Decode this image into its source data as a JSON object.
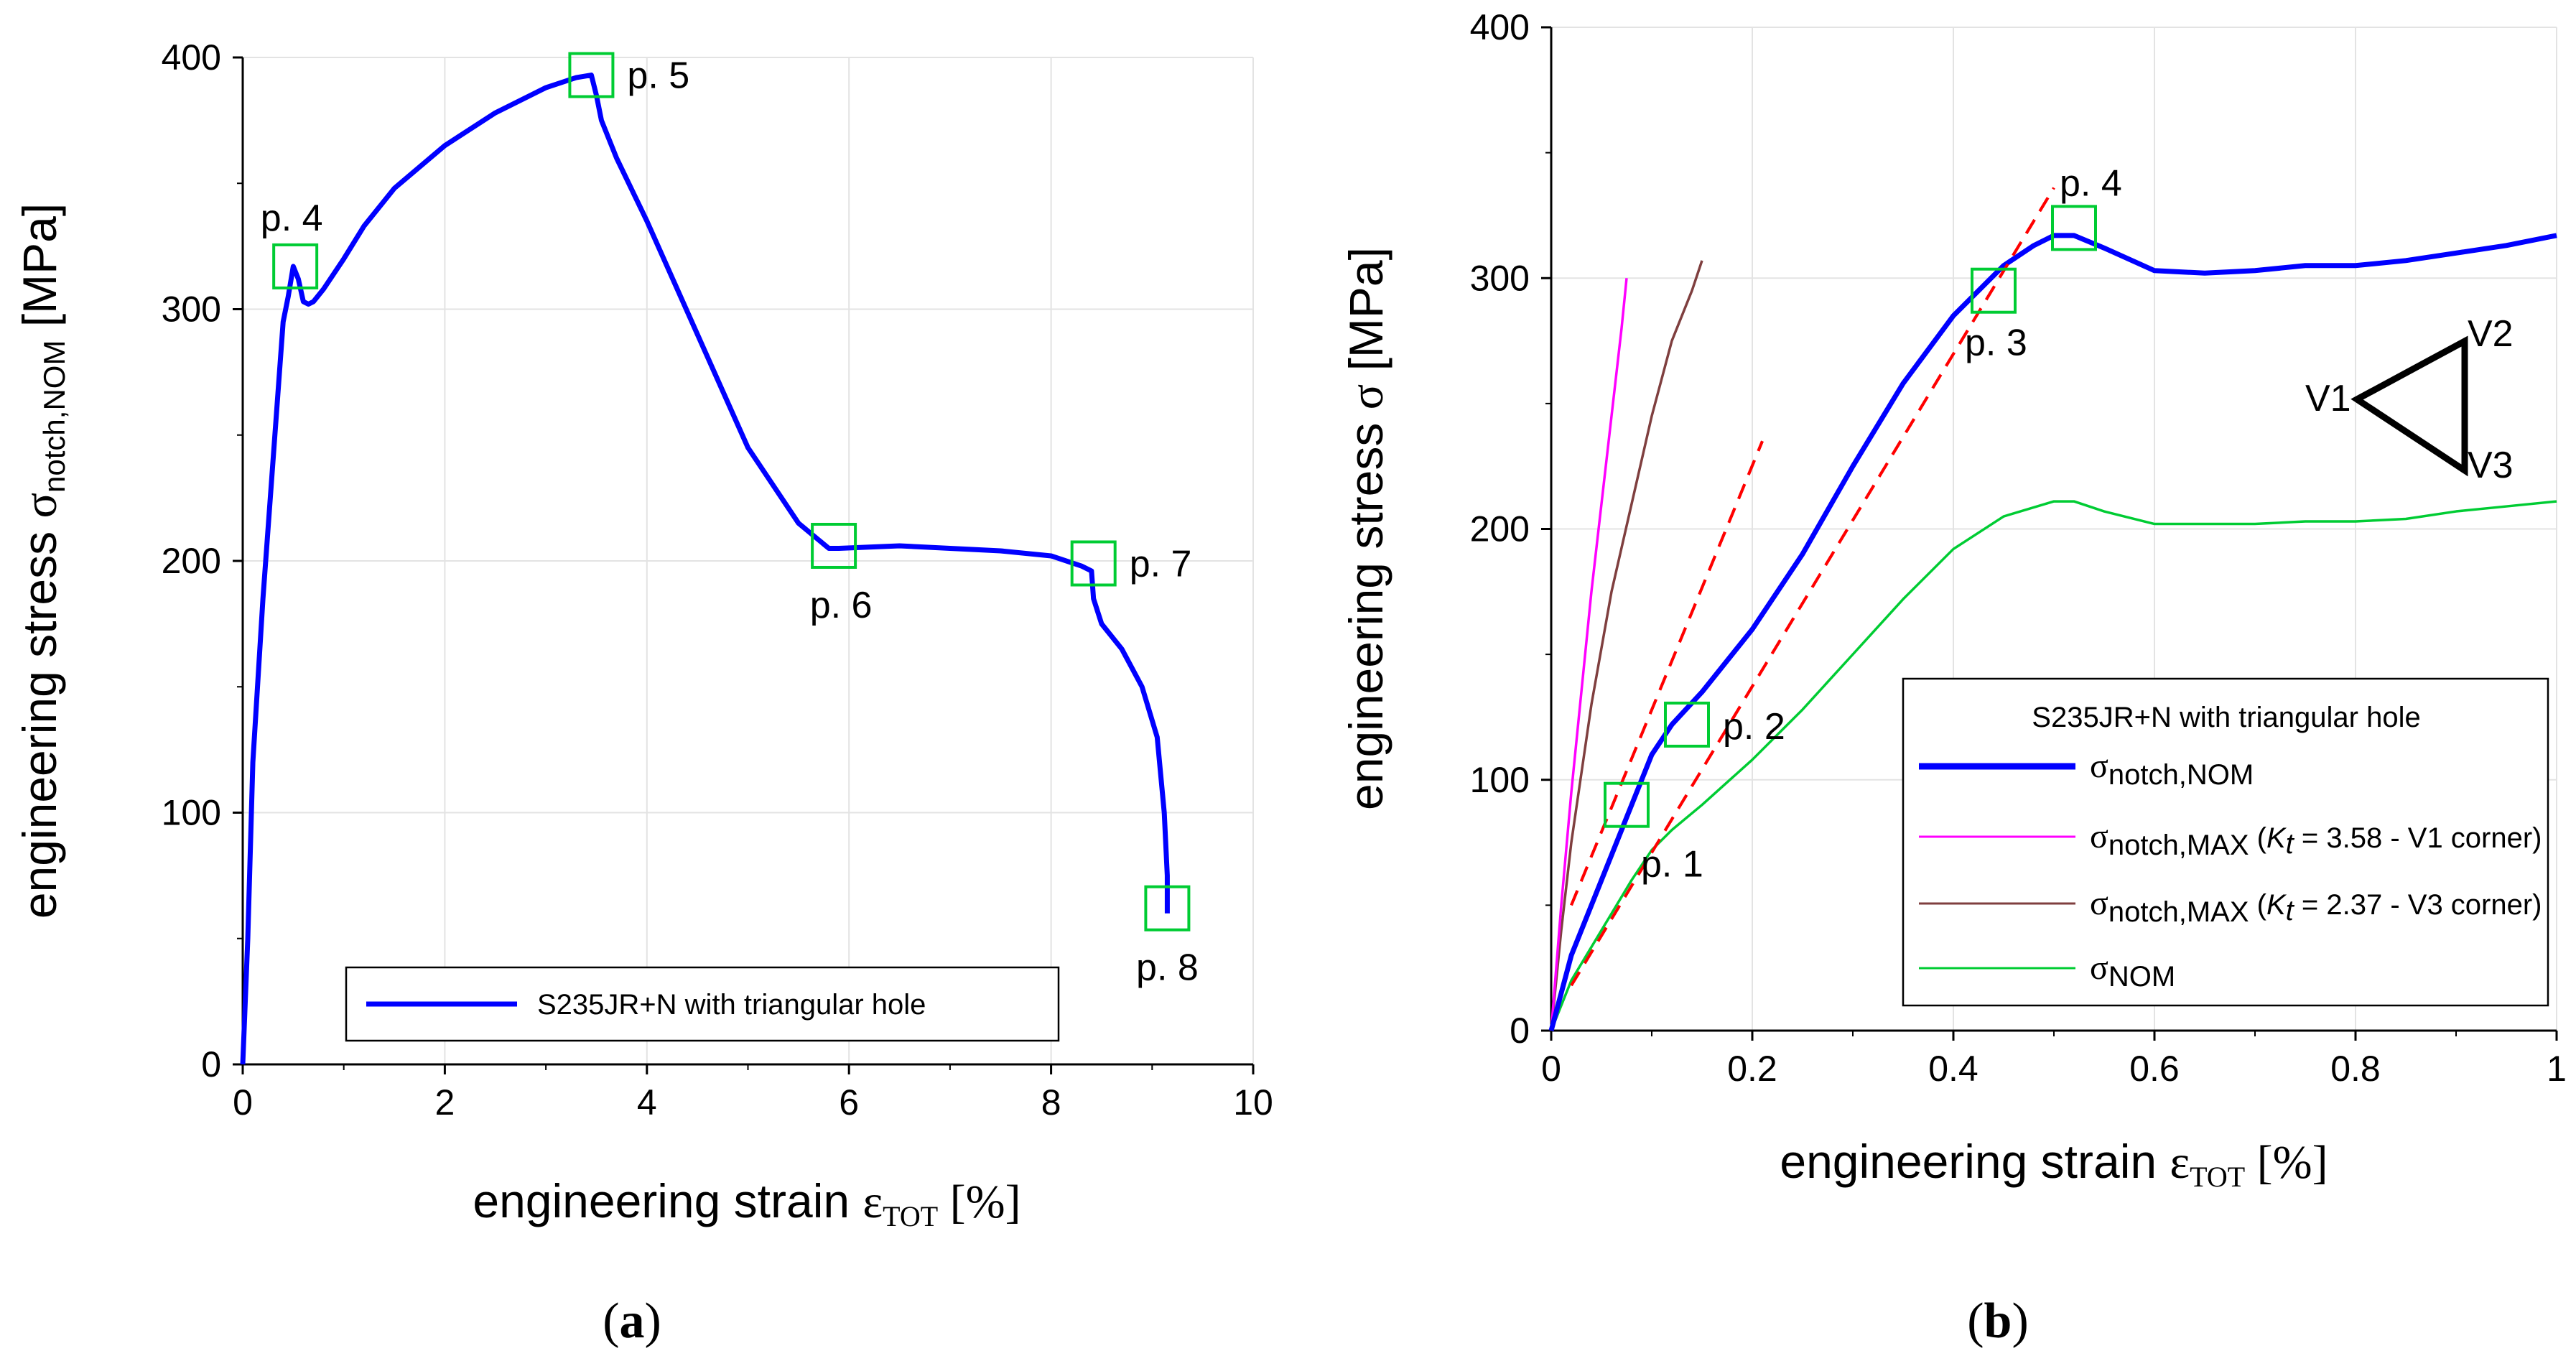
{
  "panels": {
    "a": "(a)",
    "b": "(b)",
    "a_text": "a",
    "b_text": "b"
  },
  "chart_data": [
    {
      "type": "line",
      "panel": "(a)",
      "title": "",
      "xlabel": "engineering strain ε_TOT [%]",
      "xlabel_main": "engineering strain ",
      "xlabel_eps": "ε",
      "xlabel_sub": "TOT",
      "xlabel_unit": " [%]",
      "ylabel": "engineering stress σ_notch,NOM [MPa]",
      "ylabel_main": "engineering stress ",
      "ylabel_sigma": "σ",
      "ylabel_sub": "notch,NOM",
      "ylabel_unit": " [MPa]",
      "xlim": [
        0,
        10
      ],
      "ylim": [
        0,
        400
      ],
      "xticks": [
        "0",
        "2",
        "4",
        "6",
        "8",
        "10"
      ],
      "yticks": [
        "0",
        "100",
        "200",
        "300",
        "400"
      ],
      "grid": true,
      "legend_position": "bottom-right",
      "series": [
        {
          "name": "S235JR+N with triangular hole",
          "color": "#0000ff",
          "x": [
            0,
            0.05,
            0.1,
            0.2,
            0.3,
            0.4,
            0.45,
            0.5,
            0.55,
            0.6,
            0.65,
            0.7,
            0.8,
            1.0,
            1.2,
            1.5,
            2.0,
            2.5,
            3.0,
            3.3,
            3.45,
            3.5,
            3.55,
            3.7,
            4.0,
            4.5,
            5.0,
            5.5,
            5.8,
            5.9,
            6.5,
            7.0,
            7.5,
            8.0,
            8.3,
            8.4,
            8.42,
            8.5,
            8.7,
            8.9,
            9.05,
            9.12,
            9.15,
            9.15
          ],
          "y": [
            0,
            50,
            120,
            185,
            240,
            295,
            305,
            317,
            312,
            303,
            302,
            303,
            308,
            320,
            333,
            348,
            365,
            378,
            388,
            392,
            393,
            385,
            375,
            360,
            335,
            290,
            245,
            215,
            205,
            205,
            206,
            205,
            204,
            202,
            198,
            196,
            185,
            175,
            165,
            150,
            130,
            100,
            75,
            60
          ]
        }
      ],
      "annotations": [
        {
          "label": "p. 4",
          "x": 0.52,
          "y": 317
        },
        {
          "label": "p. 5",
          "x": 3.45,
          "y": 393
        },
        {
          "label": "p. 6",
          "x": 5.85,
          "y": 206
        },
        {
          "label": "p. 7",
          "x": 8.42,
          "y": 199
        },
        {
          "label": "p. 8",
          "x": 9.15,
          "y": 62
        }
      ]
    },
    {
      "type": "line",
      "panel": "(b)",
      "title": "",
      "xlabel": "engineering strain ε_TOT [%]",
      "xlabel_main": "engineering strain ",
      "xlabel_eps": "ε",
      "xlabel_sub": "TOT",
      "xlabel_unit": " [%]",
      "ylabel": "engineering stress σ [MPa]",
      "ylabel_main": "engineering stress ",
      "ylabel_sigma": "σ",
      "ylabel_unit": " [MPa]",
      "xlim": [
        0,
        1
      ],
      "ylim": [
        0,
        400
      ],
      "xticks": [
        "0",
        "0.2",
        "0.4",
        "0.6",
        "0.8",
        "1"
      ],
      "yticks": [
        "0",
        "100",
        "200",
        "300",
        "400"
      ],
      "grid": true,
      "legend_position": "bottom-right",
      "legend_title": "S235JR+N with triangular hole",
      "series": [
        {
          "name": "σ_notch,NOM",
          "sym": "σ",
          "sub": "notch,NOM",
          "extra_pre": "",
          "kt_label": "",
          "kt_sub": "",
          "extra_post": "",
          "color": "#0000ff",
          "x": [
            0,
            0.02,
            0.05,
            0.08,
            0.1,
            0.12,
            0.15,
            0.2,
            0.25,
            0.3,
            0.35,
            0.4,
            0.45,
            0.48,
            0.5,
            0.52,
            0.55,
            0.6,
            0.65,
            0.7,
            0.75,
            0.8,
            0.85,
            0.9,
            0.95,
            1.0
          ],
          "y": [
            0,
            30,
            60,
            90,
            110,
            122,
            135,
            160,
            190,
            225,
            258,
            285,
            305,
            313,
            317,
            317,
            312,
            303,
            302,
            303,
            305,
            305,
            307,
            310,
            313,
            317
          ]
        },
        {
          "name": "σ_notch,MAX (K_t = 3.58 - V1 corner)",
          "sym": "σ",
          "sub": "notch,MAX",
          "extra_pre": " (",
          "kt_label": "K",
          "kt_sub": "t",
          "extra_post": " = 3.58 - V1 corner)",
          "color": "#ff00ff",
          "x": [
            0,
            0.01,
            0.02,
            0.03,
            0.04,
            0.05,
            0.06,
            0.07,
            0.075
          ],
          "y": [
            0,
            50,
            95,
            135,
            175,
            210,
            245,
            280,
            300
          ]
        },
        {
          "name": "σ_notch,MAX (K_t = 2.37 - V3 corner)",
          "sym": "σ",
          "sub": "notch,MAX",
          "extra_pre": " (",
          "kt_label": "K",
          "kt_sub": "t",
          "extra_post": " = 2.37 - V3 corner)",
          "color": "#7f3f3f",
          "x": [
            0,
            0.01,
            0.02,
            0.04,
            0.06,
            0.08,
            0.1,
            0.12,
            0.14,
            0.15
          ],
          "y": [
            0,
            40,
            75,
            130,
            175,
            210,
            245,
            275,
            295,
            307
          ]
        },
        {
          "name": "σ_NOM",
          "sym": "σ",
          "sub": "NOM",
          "extra_pre": "",
          "kt_label": "",
          "kt_sub": "",
          "extra_post": "",
          "color": "#00cc33",
          "x": [
            0,
            0.02,
            0.05,
            0.08,
            0.1,
            0.12,
            0.15,
            0.2,
            0.25,
            0.3,
            0.35,
            0.4,
            0.45,
            0.5,
            0.52,
            0.55,
            0.6,
            0.65,
            0.7,
            0.75,
            0.8,
            0.85,
            0.9,
            0.95,
            1.0
          ],
          "y": [
            0,
            20,
            40,
            60,
            72,
            80,
            90,
            108,
            128,
            150,
            172,
            192,
            205,
            211,
            211,
            207,
            202,
            202,
            202,
            203,
            203,
            204,
            207,
            209,
            211
          ]
        }
      ],
      "fit_lines": [
        {
          "color": "#ff0000",
          "x": [
            0.02,
            0.21
          ],
          "y": [
            50,
            235
          ]
        },
        {
          "color": "#ff0000",
          "x": [
            0.02,
            0.5
          ],
          "y": [
            18,
            336
          ]
        }
      ],
      "annotations": [
        {
          "label": "p. 1",
          "x": 0.075,
          "y": 90
        },
        {
          "label": "p. 2",
          "x": 0.135,
          "y": 122
        },
        {
          "label": "p. 3",
          "x": 0.44,
          "y": 295
        },
        {
          "label": "p. 4",
          "x": 0.52,
          "y": 320
        }
      ],
      "inset_labels": [
        "V1",
        "V2",
        "V3"
      ]
    }
  ]
}
